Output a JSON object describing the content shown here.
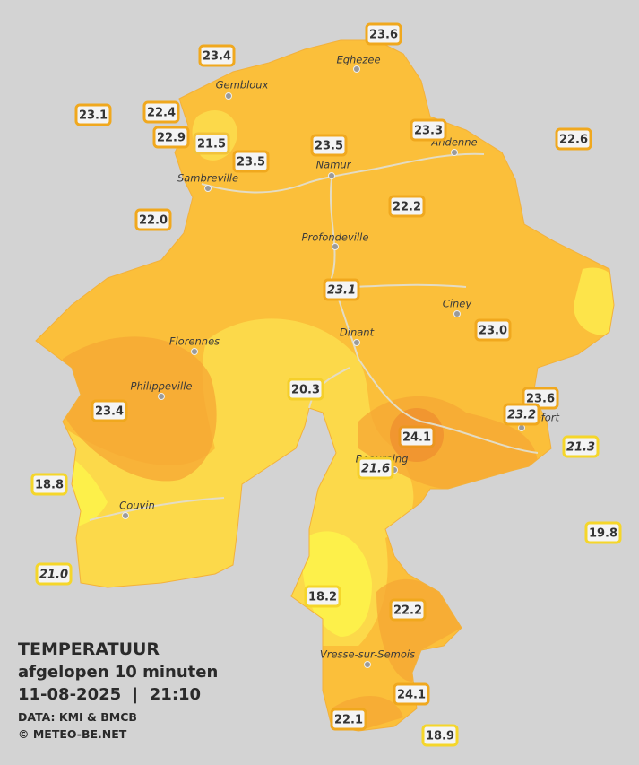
{
  "legend": {
    "title": "TEMPERATUUR",
    "subtitle": "afgelopen 10 minuten",
    "datetime": "11-08-2025  |  21:10",
    "source": "DATA: KMI & BMCB",
    "credit": "© METEO-BE.NET"
  },
  "cities": [
    "Eghezee",
    "Gembloux",
    "Sambreville",
    "Namur",
    "Andenne",
    "Profondeville",
    "Ciney",
    "Dinant",
    "Florennes",
    "Philippeville",
    "Beauraing",
    "Couvin",
    "Vresse-sur-Semois",
    "Rochefort"
  ],
  "stations": [
    {
      "label": "23.6",
      "color": "#f0a81e"
    },
    {
      "label": "23.4",
      "color": "#f0a81e"
    },
    {
      "label": "23.1",
      "color": "#f0a81e"
    },
    {
      "label": "22.4",
      "color": "#f0a81e"
    },
    {
      "label": "22.9",
      "color": "#f0a81e"
    },
    {
      "label": "21.5",
      "color": "#f2c23a"
    },
    {
      "label": "23.5",
      "color": "#f0a81e"
    },
    {
      "label": "23.5",
      "color": "#f0a81e"
    },
    {
      "label": "23.3",
      "color": "#f0a81e"
    },
    {
      "label": "22.6",
      "color": "#f0a81e"
    },
    {
      "label": "22.0",
      "color": "#f0a81e"
    },
    {
      "label": "22.2",
      "color": "#f0a81e"
    },
    {
      "label": "23.1",
      "color": "#f0a81e",
      "italic": true
    },
    {
      "label": "23.0",
      "color": "#f0a81e"
    },
    {
      "label": "20.3",
      "color": "#f5cf2a"
    },
    {
      "label": "23.4",
      "color": "#f0a81e"
    },
    {
      "label": "23.6",
      "color": "#f0a81e"
    },
    {
      "label": "23.2",
      "color": "#f0a81e",
      "italic": true
    },
    {
      "label": "24.1",
      "color": "#eb9620"
    },
    {
      "label": "21.6",
      "color": "#f5cf2a",
      "italic": true
    },
    {
      "label": "21.3",
      "color": "#f5d62a",
      "italic": true
    },
    {
      "label": "18.8",
      "color": "#f5d62a"
    },
    {
      "label": "19.8",
      "color": "#f5d62a"
    },
    {
      "label": "21.0",
      "color": "#f5d62a",
      "italic": true
    },
    {
      "label": "18.2",
      "color": "#f5d62a"
    },
    {
      "label": "22.2",
      "color": "#f0a81e"
    },
    {
      "label": "24.1",
      "color": "#f0a81e"
    },
    {
      "label": "22.1",
      "color": "#f0a81e"
    },
    {
      "label": "18.9",
      "color": "#f5d62a"
    }
  ]
}
